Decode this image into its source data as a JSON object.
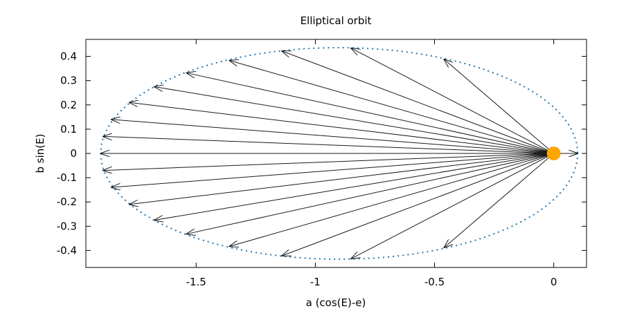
{
  "chart_data": {
    "type": "line",
    "title": "Elliptical orbit",
    "xlabel": "a (cos(E)-e)",
    "ylabel": "b sin(E)",
    "xlim": [
      -1.9625,
      0.1375
    ],
    "ylim": [
      -0.47,
      0.47
    ],
    "xticks": [
      -1.5,
      -1,
      -0.5,
      0
    ],
    "xtick_labels": [
      "-1.5",
      "-1",
      "-0.5",
      "0"
    ],
    "yticks": [
      0.4,
      0.3,
      0.2,
      0.1,
      0,
      -0.1,
      -0.2,
      -0.3,
      -0.4
    ],
    "ytick_labels": [
      "0.4",
      "0.3",
      "0.2",
      "0.1",
      "0",
      "-0.1",
      "-0.2",
      "-0.3",
      "-0.4"
    ],
    "grid": false,
    "legend": "none",
    "ellipse": {
      "center": [
        -0.9,
        0
      ],
      "semi_major": 1.0,
      "semi_minor": 0.4359,
      "eccentricity": 0.9,
      "style": "dotted",
      "color": "#1f77b4"
    },
    "focus": {
      "x": 0,
      "y": 0,
      "color": "#ffa500"
    },
    "vectors": [
      {
        "x": 0.1,
        "y": 0.0
      },
      {
        "x": -0.46,
        "y": 0.388
      },
      {
        "x": -0.85,
        "y": 0.434
      },
      {
        "x": -1.14,
        "y": 0.422
      },
      {
        "x": -1.36,
        "y": 0.383
      },
      {
        "x": -1.54,
        "y": 0.332
      },
      {
        "x": -1.675,
        "y": 0.275
      },
      {
        "x": -1.78,
        "y": 0.21
      },
      {
        "x": -1.855,
        "y": 0.14
      },
      {
        "x": -1.89,
        "y": 0.07
      },
      {
        "x": -1.9,
        "y": 0.0
      },
      {
        "x": -1.89,
        "y": -0.07
      },
      {
        "x": -1.855,
        "y": -0.14
      },
      {
        "x": -1.78,
        "y": -0.21
      },
      {
        "x": -1.675,
        "y": -0.275
      },
      {
        "x": -1.54,
        "y": -0.332
      },
      {
        "x": -1.36,
        "y": -0.383
      },
      {
        "x": -1.14,
        "y": -0.422
      },
      {
        "x": -0.85,
        "y": -0.434
      },
      {
        "x": -0.46,
        "y": -0.388
      }
    ],
    "colors": {
      "ellipse": "#1f77b4",
      "vector": "#1a1a1a",
      "focus": "#ffa500",
      "axes": "#000000"
    }
  }
}
